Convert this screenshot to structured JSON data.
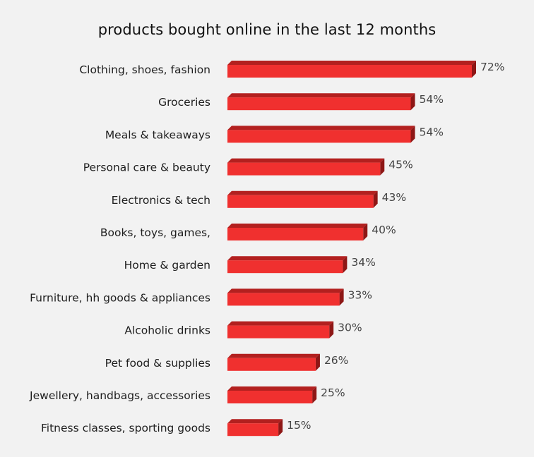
{
  "chart_data": {
    "type": "bar",
    "orientation": "horizontal",
    "title": "products bought online in the last  12 months",
    "xlabel": "",
    "ylabel": "",
    "value_format": "percent",
    "xlim": [
      0,
      72
    ],
    "grid": false,
    "legend": "none",
    "colors": {
      "bar_front": "#f0302f",
      "bar_top": "#b3201f",
      "bar_side": "#8e1716",
      "label_text": "#1e1e1e",
      "value_text": "#444444",
      "background": "#f2f2f2"
    },
    "categories": [
      "Clothing, shoes, fashion",
      "Groceries",
      "Meals & takeaways",
      "Personal care & beauty",
      "Electronics & tech",
      "Books, toys, games,",
      "Home & garden",
      "Furniture, hh goods & appliances",
      "Alcoholic drinks",
      "Pet food & supplies",
      "Jewellery, handbags, accessories",
      "Fitness classes, sporting goods"
    ],
    "values": [
      72,
      54,
      54,
      45,
      43,
      40,
      34,
      33,
      30,
      26,
      25,
      15
    ],
    "data_labels": [
      "72%",
      "54%",
      "54%",
      "45%",
      "43%",
      "40%",
      "34%",
      "33%",
      "30%",
      "26%",
      "25%",
      "15%"
    ]
  }
}
